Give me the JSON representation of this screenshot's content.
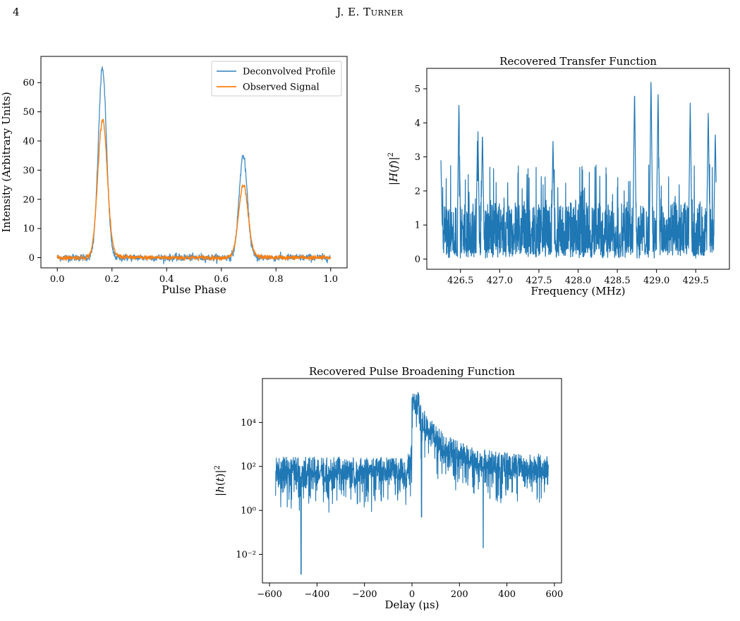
{
  "header": {
    "page_number": "4",
    "running_head": "J. E. Turner"
  },
  "chart_data": [
    {
      "id": "profile",
      "type": "line",
      "title": "",
      "xlabel": "Pulse Phase",
      "ylabel": "Intensity (Arbitrary Units)",
      "xlim": [
        -0.06,
        1.06
      ],
      "ylim": [
        -3.5,
        69
      ],
      "xticks": [
        0.0,
        0.2,
        0.4,
        0.6,
        0.8,
        1.0
      ],
      "xtick_labels": [
        "0.0",
        "0.2",
        "0.4",
        "0.6",
        "0.8",
        "1.0"
      ],
      "yticks": [
        0,
        10,
        20,
        30,
        40,
        50,
        60
      ],
      "ytick_labels": [
        "0",
        "10",
        "20",
        "30",
        "40",
        "50",
        "60"
      ],
      "legend_position": "top-right",
      "grid": false,
      "series": [
        {
          "name": "Deconvolved Profile",
          "color": "#4c93c7",
          "components": [
            {
              "center": 0.165,
              "amp": 65,
              "width": 0.015
            },
            {
              "center": 0.68,
              "amp": 35,
              "width": 0.015
            }
          ],
          "noise": 0.9
        },
        {
          "name": "Observed Signal",
          "color": "#ff7f0e",
          "components": [
            {
              "center": 0.165,
              "amp": 47,
              "width": 0.017,
              "tail": 0.03
            },
            {
              "center": 0.68,
              "amp": 24.5,
              "width": 0.017,
              "tail": 0.03
            }
          ],
          "noise": 0.7
        }
      ]
    },
    {
      "id": "transfer",
      "type": "line",
      "title": "Recovered Transfer Function",
      "xlabel": "Frequency (MHz)",
      "ylabel": "|H(f)|²",
      "xlim": [
        426.07,
        429.93
      ],
      "ylim": [
        -0.3,
        5.6
      ],
      "xticks": [
        426.5,
        427.0,
        427.5,
        428.0,
        428.5,
        429.0,
        429.5
      ],
      "xtick_labels": [
        "426.5",
        "427.0",
        "427.5",
        "428.0",
        "428.5",
        "429.0",
        "429.5"
      ],
      "yticks": [
        0,
        1,
        2,
        3,
        4,
        5
      ],
      "ytick_labels": [
        "0",
        "1",
        "2",
        "3",
        "4",
        "5"
      ],
      "grid": false,
      "series": [
        {
          "color": "#1f77b4",
          "x_range": [
            426.25,
            429.76
          ],
          "peaks": [
            [
              426.25,
              2.9
            ],
            [
              426.48,
              4.65
            ],
            [
              426.72,
              4.2
            ],
            [
              426.78,
              3.75
            ],
            [
              427.68,
              3.5
            ],
            [
              428.72,
              5.0
            ],
            [
              428.93,
              5.35
            ],
            [
              429.02,
              4.95
            ],
            [
              429.43,
              4.6
            ],
            [
              429.66,
              4.4
            ],
            [
              429.75,
              3.75
            ]
          ]
        }
      ]
    },
    {
      "id": "broadening",
      "type": "line",
      "title": "Recovered Pulse Broadening Function",
      "xlabel": "Delay (μs)",
      "ylabel": "|h(t)|²",
      "log_scale_y": true,
      "xlim": [
        -630,
        630
      ],
      "ylim_log10": [
        -3.3,
        6.0
      ],
      "xticks": [
        -600,
        -400,
        -200,
        0,
        200,
        400,
        600
      ],
      "xtick_labels": [
        "−600",
        "−400",
        "−200",
        "0",
        "200",
        "400",
        "600"
      ],
      "yticks_log10": [
        -2,
        0,
        2,
        4
      ],
      "ytick_labels": [
        "10⁻²",
        "10⁰",
        "10²",
        "10⁴"
      ],
      "grid": false,
      "series": [
        {
          "color": "#1f77b4",
          "x_range": [
            -575,
            575
          ],
          "peak_log10": 5.4,
          "baseline_log10": 1.9,
          "decay_us": 120,
          "dips": [
            [
              -467,
              -2.9
            ],
            [
              300,
              -1.7
            ],
            [
              40,
              -0.3
            ],
            [
              -230,
              0.3
            ]
          ]
        }
      ]
    }
  ]
}
